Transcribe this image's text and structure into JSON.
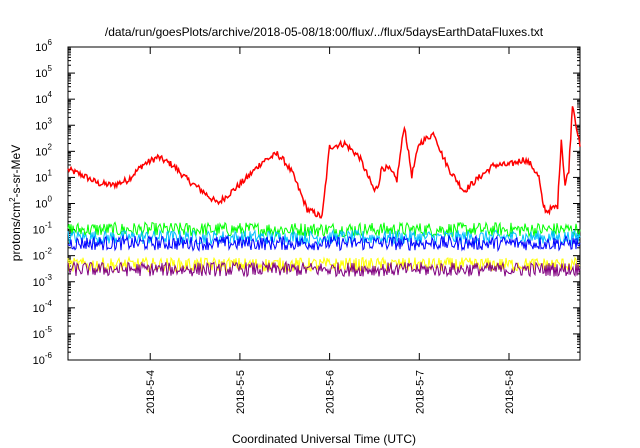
{
  "chart_data": {
    "type": "line",
    "title": "/data/run/goesPlots/archive/2018-05-08/18:00/flux/../flux/5daysEarthDataFluxes.txt",
    "xlabel": "Coordinated Universal Time (UTC)",
    "ylabel_main": "protons/cm",
    "ylabel_sup": "2",
    "ylabel_rest": "-s-sr-MeV",
    "xlim": [
      "2018-05-03T02:00",
      "2018-05-08T19:00"
    ],
    "ylim": [
      1e-06,
      1000000.0
    ],
    "yscale": "log",
    "grid": false,
    "legend": "none",
    "x_ticks": [
      {
        "x": "2018-05-04T00:00",
        "label": "2018-5-4"
      },
      {
        "x": "2018-05-05T00:00",
        "label": "2018-5-5"
      },
      {
        "x": "2018-05-06T00:00",
        "label": "2018-5-6"
      },
      {
        "x": "2018-05-07T00:00",
        "label": "2018-5-7"
      },
      {
        "x": "2018-05-08T00:00",
        "label": "2018-5-8"
      }
    ],
    "y_ticks": [
      {
        "v": 1e-06,
        "base": "10",
        "exp": "-6"
      },
      {
        "v": 1e-05,
        "base": "10",
        "exp": "-5"
      },
      {
        "v": 0.0001,
        "base": "10",
        "exp": "-4"
      },
      {
        "v": 0.001,
        "base": "10",
        "exp": "-3"
      },
      {
        "v": 0.01,
        "base": "10",
        "exp": "-2"
      },
      {
        "v": 0.1,
        "base": "10",
        "exp": "-1"
      },
      {
        "v": 1,
        "base": "10",
        "exp": "0"
      },
      {
        "v": 10,
        "base": "10",
        "exp": "1"
      },
      {
        "v": 100,
        "base": "10",
        "exp": "2"
      },
      {
        "v": 1000,
        "base": "10",
        "exp": "3"
      },
      {
        "v": 10000,
        "base": "10",
        "exp": "4"
      },
      {
        "v": 100000,
        "base": "10",
        "exp": "5"
      },
      {
        "v": 1000000,
        "base": "10",
        "exp": "6"
      }
    ],
    "series": [
      {
        "color": "#ff0000",
        "style": "detailed",
        "x": [
          "2018-05-03T02:00",
          "2018-05-03T06:00",
          "2018-05-03T10:00",
          "2018-05-03T14:00",
          "2018-05-03T18:00",
          "2018-05-03T22:00",
          "2018-05-04T02:00",
          "2018-05-04T06:00",
          "2018-05-04T10:00",
          "2018-05-04T14:00",
          "2018-05-04T18:00",
          "2018-05-04T22:00",
          "2018-05-05T02:00",
          "2018-05-05T06:00",
          "2018-05-05T10:00",
          "2018-05-05T12:00",
          "2018-05-05T14:00",
          "2018-05-05T16:00",
          "2018-05-05T18:00",
          "2018-05-05T22:00",
          "2018-05-06T00:00",
          "2018-05-06T04:00",
          "2018-05-06T08:00",
          "2018-05-06T12:00",
          "2018-05-06T13:00",
          "2018-05-06T14:00",
          "2018-05-06T16:00",
          "2018-05-06T18:00",
          "2018-05-06T20:00",
          "2018-05-06T22:00",
          "2018-05-07T00:00",
          "2018-05-07T04:00",
          "2018-05-07T06:00",
          "2018-05-07T08:00",
          "2018-05-07T12:00",
          "2018-05-07T16:00",
          "2018-05-07T20:00",
          "2018-05-08T00:00",
          "2018-05-08T04:00",
          "2018-05-08T06:00",
          "2018-05-08T08:00",
          "2018-05-08T09:00",
          "2018-05-08T10:00",
          "2018-05-08T13:00",
          "2018-05-08T14:00",
          "2018-05-08T15:00",
          "2018-05-08T16:00",
          "2018-05-08T17:00",
          "2018-05-08T19:00"
        ],
        "values": [
          20,
          12,
          6,
          5,
          8,
          30,
          60,
          30,
          8,
          3,
          1,
          3,
          10,
          40,
          80,
          40,
          15,
          3,
          0.6,
          0.3,
          150,
          200,
          60,
          3,
          5,
          25,
          20,
          8,
          1000,
          12,
          200,
          500,
          80,
          20,
          3,
          10,
          30,
          30,
          50,
          30,
          10,
          1,
          0.5,
          0.8,
          300,
          5,
          20,
          7000,
          150
        ]
      },
      {
        "color": "#00ff00",
        "style": "noise",
        "x": [
          "2018-05-03T02:00",
          "2018-05-08T19:00"
        ],
        "values": [
          0.1,
          0.1
        ]
      },
      {
        "color": "#00bfff",
        "style": "noise",
        "x": [
          "2018-05-03T02:00",
          "2018-05-08T19:00"
        ],
        "values": [
          0.05,
          0.05
        ]
      },
      {
        "color": "#0000ff",
        "style": "noise",
        "x": [
          "2018-05-03T02:00",
          "2018-05-08T19:00"
        ],
        "values": [
          0.03,
          0.03
        ]
      },
      {
        "color": "#ffff00",
        "style": "noise",
        "x": [
          "2018-05-03T02:00",
          "2018-05-08T19:00"
        ],
        "values": [
          0.0045,
          0.0045
        ]
      },
      {
        "color": "#800080",
        "style": "noise",
        "x": [
          "2018-05-03T02:00",
          "2018-05-08T19:00"
        ],
        "values": [
          0.003,
          0.003
        ]
      }
    ]
  }
}
